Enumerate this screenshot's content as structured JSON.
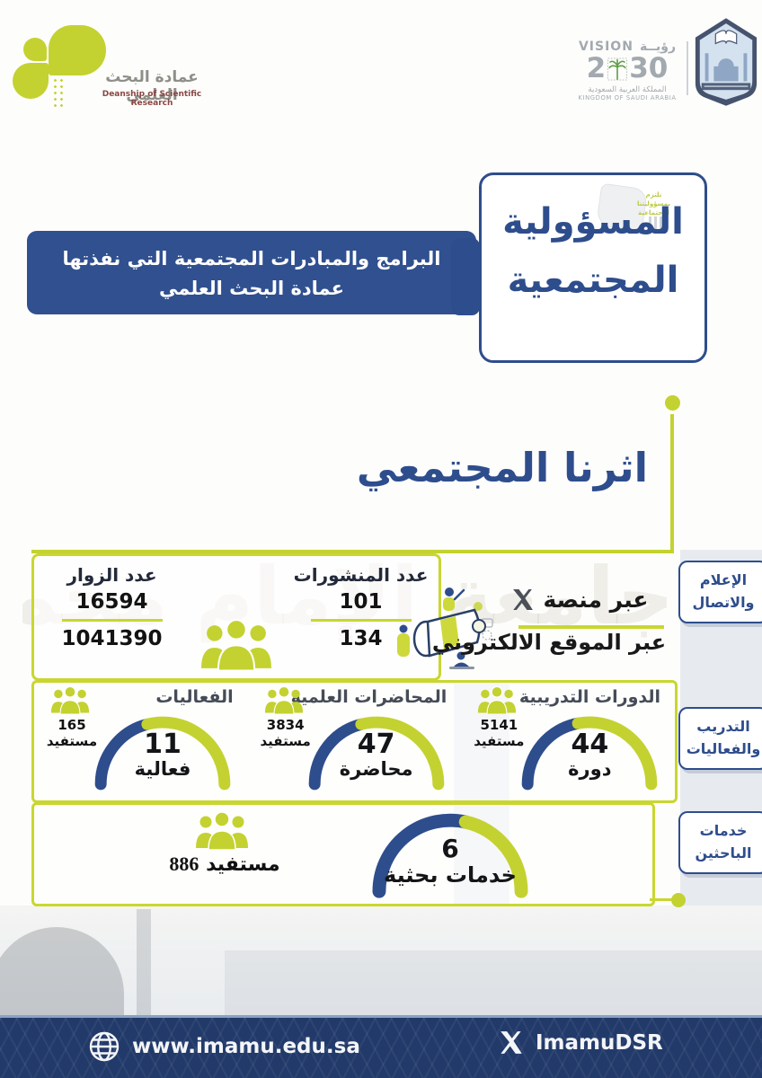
{
  "header": {
    "dsr_logo": {
      "title_ar": "عمادة البحث العلمي",
      "title_en": "Deanship of Scientific Research"
    },
    "vision2030": {
      "word_en": "VISION",
      "word_ar": "رؤيــة",
      "year_prefix": "2",
      "year_suffix": "30",
      "kingdom_ar": "المملكة العربية السعودية",
      "kingdom_en": "KINGDOM OF SAUDI ARABIA"
    }
  },
  "banner": {
    "line1": "البرامج والمبادرات المجتمعية التي نفذتها",
    "line2": "عمادة البحث العلمي"
  },
  "title_box": {
    "line1": "المسؤولية",
    "line2": "المجتمعية",
    "stamp_line1": "نلتزم",
    "stamp_line2": "بمسؤوليتنا",
    "stamp_line3": "الاجتماعية"
  },
  "impact_heading": "اثرنا المجتمعي",
  "media_section": {
    "tab": {
      "line1": "الإعلام",
      "line2": "والاتصال"
    },
    "visitors": {
      "title": "عدد الزوار",
      "via_x": "16594",
      "via_website": "1041390"
    },
    "publications": {
      "title": "عدد المنشورات",
      "via_x": "101",
      "via_website": "134"
    },
    "channels": {
      "x_label": "عبر منصة",
      "website_label": "عبر الموقع الالكتروني"
    }
  },
  "training_section": {
    "tab": {
      "line1": "التدريب",
      "line2": "والفعاليات"
    }
  },
  "services_section": {
    "tab": {
      "line1": "خدمات",
      "line2": "الباحثين"
    }
  },
  "footer": {
    "website": "www.imamu.edu.sa",
    "x_handle": "ImamuDSR"
  },
  "background": {
    "watermark_text": "جامعة الإمام محمد بن سعود الإسلامية"
  },
  "colors": {
    "lime": "#c3d230",
    "blue": "#2e4d8c",
    "footer_navy": "#223a6a"
  },
  "chart_data": {
    "type": "gauge",
    "gauges": [
      {
        "id": "training-courses",
        "title": "الدورات التدريبية",
        "value": "44",
        "unit": "دورة",
        "beneficiaries": "5141",
        "beneficiaries_label": "مستفيد",
        "blue_fraction": 0.44
      },
      {
        "id": "scientific-lectures",
        "title": "المحاضرات العلمية",
        "value": "47",
        "unit": "محاضرة",
        "beneficiaries": "3834",
        "beneficiaries_label": "مستفيد",
        "blue_fraction": 0.42
      },
      {
        "id": "events",
        "title": "الفعاليات",
        "value": "11",
        "unit": "فعالية",
        "beneficiaries": "165",
        "beneficiaries_label": "مستفيد",
        "blue_fraction": 0.42
      },
      {
        "id": "research-services",
        "title": "خدمات الباحثين",
        "value": "6",
        "unit": "خدمات بحثية",
        "beneficiaries": "886",
        "beneficiaries_label": "مستفيد",
        "blue_fraction": 0.57
      }
    ]
  }
}
